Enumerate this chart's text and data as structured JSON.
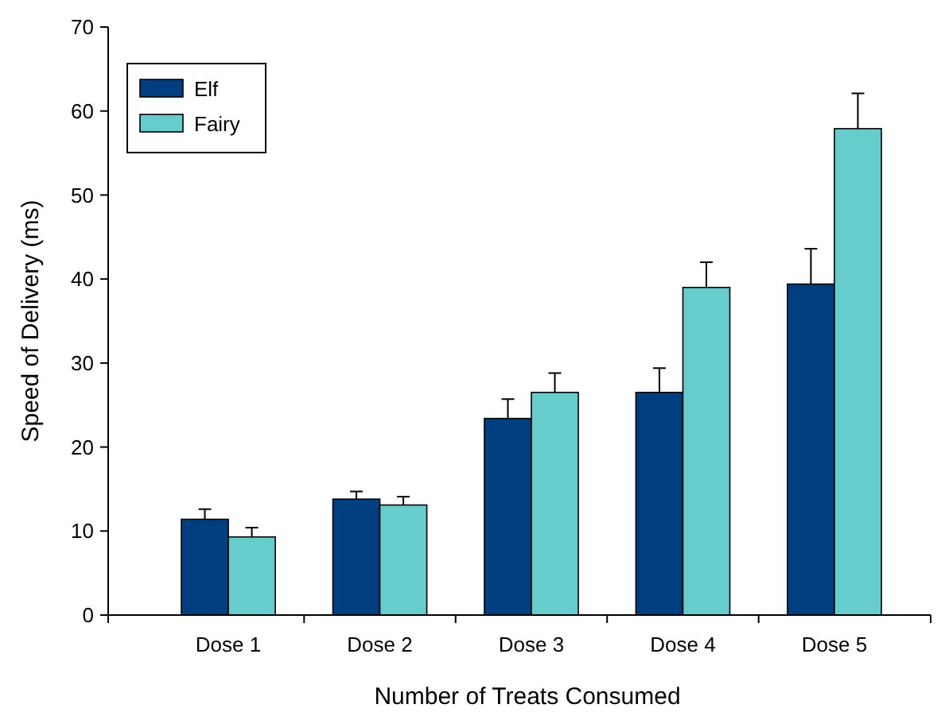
{
  "chart_data": {
    "type": "bar",
    "xlabel": "Number of Treats Consumed",
    "ylabel": "Speed of Delivery (ms)",
    "categories": [
      "Dose 1",
      "Dose 2",
      "Dose 3",
      "Dose 4",
      "Dose 5"
    ],
    "series": [
      {
        "name": "Elf",
        "color": "#003f7f",
        "values": [
          11.4,
          13.8,
          23.4,
          26.5,
          39.4
        ],
        "errors": [
          1.2,
          0.9,
          2.3,
          2.9,
          4.2
        ]
      },
      {
        "name": "Fairy",
        "color": "#66cccc",
        "values": [
          9.3,
          13.1,
          26.5,
          39.0,
          57.9
        ],
        "errors": [
          1.1,
          1.0,
          2.3,
          3.0,
          4.2
        ]
      }
    ],
    "ylim": [
      0,
      70
    ],
    "yticks": [
      0,
      10,
      20,
      30,
      40,
      50,
      60,
      70
    ],
    "legend": "top left"
  }
}
